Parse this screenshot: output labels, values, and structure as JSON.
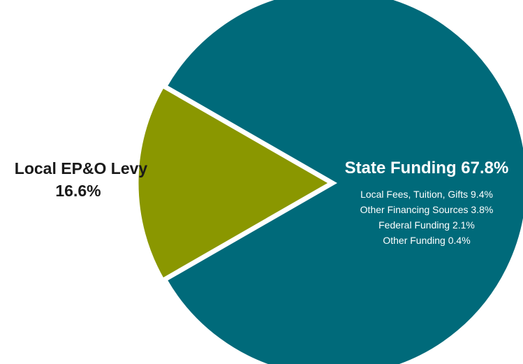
{
  "chart_data": {
    "type": "pie",
    "title": "",
    "slices": [
      {
        "label": "State Funding",
        "value": 83.4,
        "display": "State Funding 67.8%",
        "color": "#006a7a"
      },
      {
        "label": "Local EP&O Levy",
        "value": 16.6,
        "display": "16.6%",
        "color": "#8a9700"
      }
    ],
    "annotations": [
      "Local Fees, Tuition, Gifts 9.4%",
      "Other Financing Sources 3.8%",
      "Federal Funding 2.1%",
      "Other Funding 0.4%"
    ],
    "legend": "none",
    "grid": false
  }
}
